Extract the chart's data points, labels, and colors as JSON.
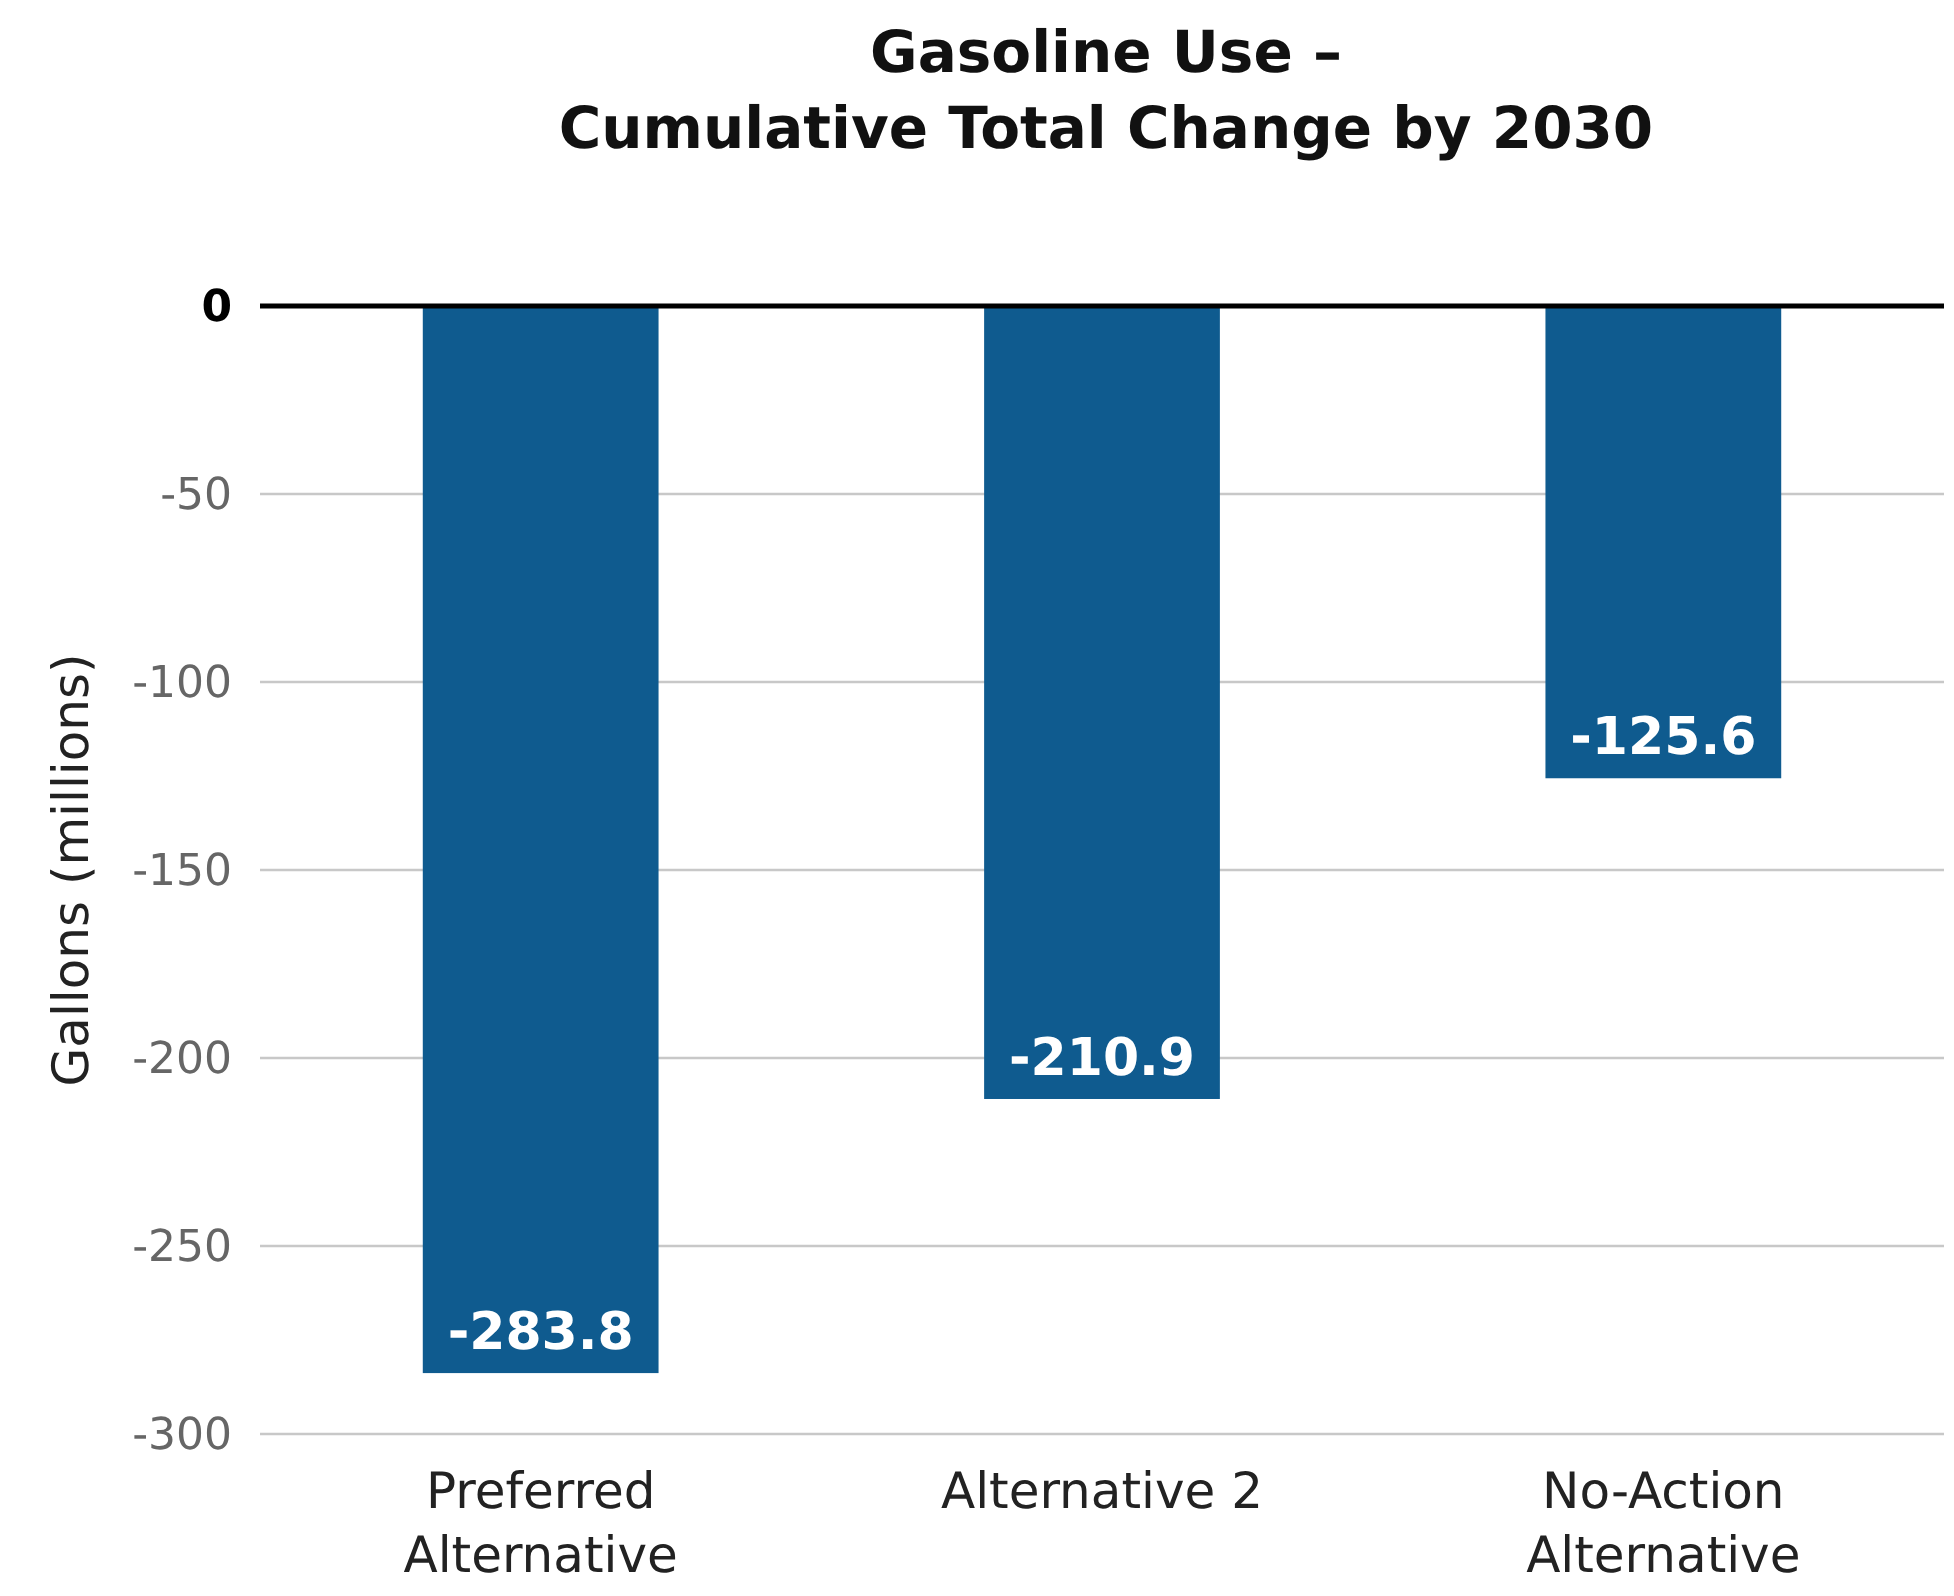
{
  "chart_data": {
    "type": "bar",
    "title": "Gasoline Use –\nCumulative Total Change by 2030",
    "ylabel": "Gallons (millions)",
    "categories": [
      "Preferred Alternative",
      "Alternative 2",
      "No-Action Alternative"
    ],
    "values": [
      -283.8,
      -210.9,
      -125.6
    ],
    "color": "#0f5b8f",
    "ylim": [
      -300,
      0
    ],
    "yticks": [
      -300,
      -250,
      -200,
      -150,
      -100,
      -50,
      0
    ],
    "grid": "y",
    "data_labels": true
  }
}
